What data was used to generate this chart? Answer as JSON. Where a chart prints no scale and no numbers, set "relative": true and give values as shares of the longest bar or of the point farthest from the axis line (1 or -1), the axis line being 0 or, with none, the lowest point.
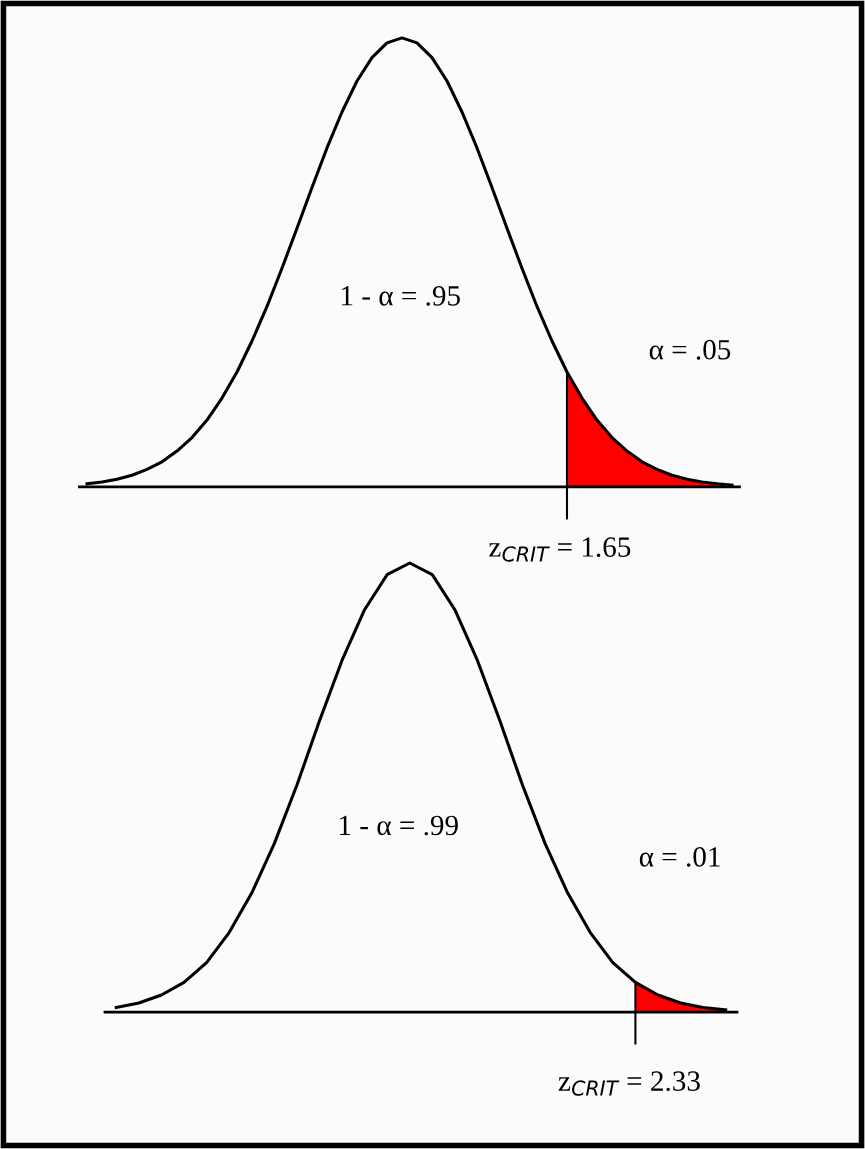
{
  "chart_data": [
    {
      "type": "line",
      "relative": true,
      "grid": false,
      "legend": false,
      "categories": [
        null,
        null,
        null,
        null,
        null,
        null,
        null,
        null,
        null,
        null,
        null,
        null,
        null,
        null,
        null,
        null,
        null,
        null,
        null,
        null,
        null,
        null,
        null,
        null,
        null,
        null,
        null,
        null,
        null,
        null,
        null,
        null,
        null,
        null,
        null,
        null,
        null,
        null,
        null,
        null,
        null,
        null,
        null,
        null
      ],
      "annotations": [
        "1 - α = .95",
        "α = .05",
        "z$_{CRIT}$ = 1.65"
      ],
      "series": [
        {
          "color": "#000000",
          "values": [
            0.007,
            0.011,
            0.017,
            0.026,
            0.039,
            0.056,
            0.08,
            0.11,
            0.149,
            0.198,
            0.256,
            0.325,
            0.402,
            0.487,
            0.576,
            0.667,
            0.755,
            0.835,
            0.904,
            0.956,
            0.989,
            1.0,
            0.989,
            0.956,
            0.904,
            0.835,
            0.755,
            0.667,
            0.576,
            0.487,
            0.402,
            0.325,
            0.256,
            0.198,
            0.149,
            0.11,
            0.08,
            0.056,
            0.039,
            0.026,
            0.017,
            0.011,
            0.007,
            0.004
          ]
        },
        {
          "type": "area",
          "color": "#ff0000",
          "values": [
            null,
            null,
            null,
            null,
            null,
            null,
            null,
            null,
            null,
            null,
            null,
            null,
            null,
            null,
            null,
            null,
            null,
            null,
            null,
            null,
            null,
            null,
            null,
            null,
            null,
            null,
            null,
            null,
            null,
            null,
            null,
            null,
            0.256,
            0.198,
            0.149,
            0.11,
            0.08,
            0.056,
            0.039,
            0.026,
            0.017,
            0.011,
            0.007,
            0.004
          ]
        }
      ]
    },
    {
      "type": "line",
      "relative": true,
      "grid": false,
      "legend": false,
      "categories": [
        null,
        null,
        null,
        null,
        null,
        null,
        null,
        null,
        null,
        null,
        null,
        null,
        null,
        null,
        null,
        null,
        null,
        null,
        null,
        null,
        null,
        null,
        null,
        null,
        null,
        null,
        null,
        null
      ],
      "annotations": [
        "1 - α = .99",
        "α = .01",
        "z$_{CRIT}$ = 2.33"
      ],
      "series": [
        {
          "color": "#000000",
          "values": [
            0.01,
            0.02,
            0.038,
            0.066,
            0.11,
            0.177,
            0.265,
            0.375,
            0.505,
            0.648,
            0.783,
            0.896,
            0.974,
            1.0,
            0.974,
            0.896,
            0.783,
            0.648,
            0.505,
            0.375,
            0.265,
            0.177,
            0.11,
            0.066,
            0.038,
            0.02,
            0.01,
            0.005
          ]
        },
        {
          "type": "area",
          "color": "#ff0000",
          "values": [
            null,
            null,
            null,
            null,
            null,
            null,
            null,
            null,
            null,
            null,
            null,
            null,
            null,
            null,
            null,
            null,
            null,
            null,
            null,
            null,
            null,
            null,
            null,
            0.066,
            0.038,
            0.02,
            0.01,
            0.005
          ]
        }
      ]
    }
  ]
}
